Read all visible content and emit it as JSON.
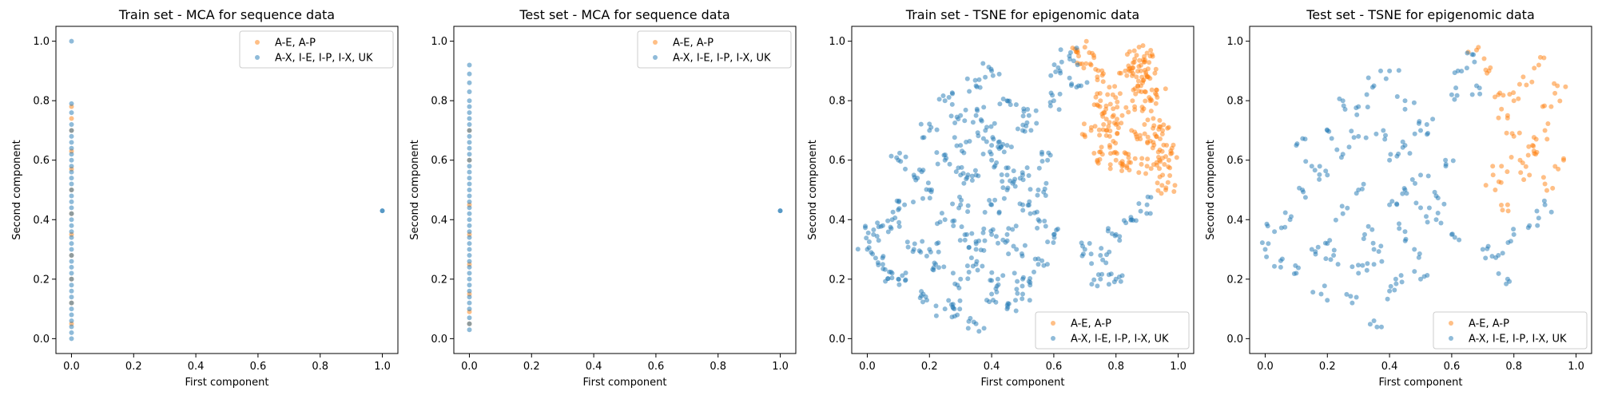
{
  "colors": {
    "orange": "#ff7f0e",
    "blue": "#1f77b4",
    "axes": "#000000",
    "legend_border": "#cccccc"
  },
  "chart_data": [
    {
      "type": "scatter",
      "title": "Train set - MCA for sequence data",
      "xlabel": "First component",
      "ylabel": "Second component",
      "xlim": [
        -0.05,
        1.05
      ],
      "ylim": [
        -0.05,
        1.05
      ],
      "xticks": [
        "0.0",
        "0.2",
        "0.4",
        "0.6",
        "0.8",
        "1.0"
      ],
      "yticks": [
        "0.0",
        "0.2",
        "0.4",
        "0.6",
        "0.8",
        "1.0"
      ],
      "grid": false,
      "legend_position": "upper right",
      "series": [
        {
          "name": "A-E, A-P",
          "color": "#ff7f0e",
          "alpha": 0.5,
          "x": [
            0,
            0,
            0,
            0,
            0,
            0,
            0,
            0,
            0,
            0,
            0,
            0
          ],
          "y": [
            0.05,
            0.12,
            0.2,
            0.28,
            0.35,
            0.42,
            0.5,
            0.57,
            0.63,
            0.7,
            0.74,
            0.78
          ]
        },
        {
          "name": "A-X, I-E, I-P, I-X, UK",
          "color": "#1f77b4",
          "alpha": 0.5,
          "x": [
            0,
            0,
            0,
            0,
            0,
            0,
            0,
            0,
            0,
            0,
            0,
            0,
            0,
            0,
            0,
            0,
            0,
            0,
            0,
            0,
            0,
            0,
            0,
            0,
            0,
            0,
            0,
            0,
            0,
            0,
            0,
            0,
            0,
            0,
            0,
            0,
            0,
            0,
            0,
            1,
            1
          ],
          "y": [
            0.0,
            0.02,
            0.04,
            0.06,
            0.08,
            0.1,
            0.12,
            0.14,
            0.16,
            0.18,
            0.2,
            0.22,
            0.24,
            0.26,
            0.28,
            0.3,
            0.32,
            0.34,
            0.36,
            0.38,
            0.4,
            0.42,
            0.44,
            0.46,
            0.48,
            0.5,
            0.52,
            0.54,
            0.56,
            0.58,
            0.6,
            0.62,
            0.64,
            0.66,
            0.68,
            0.7,
            0.72,
            0.76,
            0.79,
            0.43,
            0.43
          ]
        },
        {
          "name": "",
          "color": "#1f77b4",
          "alpha": 0.5,
          "x": [
            0
          ],
          "y": [
            1.0
          ]
        }
      ]
    },
    {
      "type": "scatter",
      "title": "Test set - MCA for sequence data",
      "xlabel": "First component",
      "ylabel": "Second component",
      "xlim": [
        -0.05,
        1.05
      ],
      "ylim": [
        -0.05,
        1.05
      ],
      "xticks": [
        "0.0",
        "0.2",
        "0.4",
        "0.6",
        "0.8",
        "1.0"
      ],
      "yticks": [
        "0.0",
        "0.2",
        "0.4",
        "0.6",
        "0.8",
        "1.0"
      ],
      "grid": false,
      "legend_position": "upper right",
      "series": [
        {
          "name": "A-E, A-P",
          "color": "#ff7f0e",
          "alpha": 0.5,
          "x": [
            0,
            0,
            0,
            0,
            0,
            0,
            0,
            0
          ],
          "y": [
            0.05,
            0.09,
            0.15,
            0.25,
            0.35,
            0.45,
            0.6,
            0.7
          ]
        },
        {
          "name": "A-X, I-E, I-P, I-X, UK",
          "color": "#1f77b4",
          "alpha": 0.5,
          "x": [
            0,
            0,
            0,
            0,
            0,
            0,
            0,
            0,
            0,
            0,
            0,
            0,
            0,
            0,
            0,
            0,
            0,
            0,
            0,
            0,
            0,
            0,
            0,
            0,
            0,
            0,
            0,
            0,
            0,
            0,
            0,
            0,
            0,
            0,
            0,
            0,
            0,
            0,
            0,
            0,
            0,
            0,
            0,
            1,
            1
          ],
          "y": [
            0.03,
            0.05,
            0.07,
            0.1,
            0.12,
            0.14,
            0.16,
            0.18,
            0.2,
            0.22,
            0.24,
            0.26,
            0.28,
            0.3,
            0.32,
            0.34,
            0.36,
            0.38,
            0.4,
            0.42,
            0.44,
            0.46,
            0.48,
            0.5,
            0.52,
            0.54,
            0.56,
            0.58,
            0.6,
            0.62,
            0.64,
            0.66,
            0.68,
            0.7,
            0.72,
            0.74,
            0.76,
            0.78,
            0.8,
            0.83,
            0.86,
            0.89,
            0.92,
            0.43,
            0.43
          ]
        }
      ]
    },
    {
      "type": "scatter",
      "title": "Train set - TSNE for epigenomic data",
      "xlabel": "First component",
      "ylabel": "Second component",
      "xlim": [
        -0.05,
        1.05
      ],
      "ylim": [
        -0.05,
        1.05
      ],
      "xticks": [
        "0.0",
        "0.2",
        "0.4",
        "0.6",
        "0.8",
        "1.0"
      ],
      "yticks": [
        "0.0",
        "0.2",
        "0.4",
        "0.6",
        "0.8",
        "1.0"
      ],
      "grid": false,
      "legend_position": "lower right",
      "series": [
        {
          "name": "A-E, A-P",
          "color": "#ff7f0e",
          "alpha": 0.5,
          "x": [
            0.68,
            0.7,
            0.72,
            0.74,
            0.75,
            0.76,
            0.78,
            0.8,
            0.82,
            0.84,
            0.85,
            0.86,
            0.87,
            0.88,
            0.89,
            0.9,
            0.91,
            0.92,
            0.93,
            0.94,
            0.95,
            0.96,
            0.97,
            0.98,
            0.72,
            0.76,
            0.79,
            0.83,
            0.86,
            0.9,
            0.93,
            0.95,
            0.74,
            0.78,
            0.82,
            0.88,
            0.92,
            0.8,
            0.85,
            0.9
          ],
          "y": [
            0.95,
            0.98,
            0.92,
            0.88,
            0.8,
            0.72,
            0.65,
            0.6,
            0.58,
            0.62,
            0.7,
            0.78,
            0.85,
            0.9,
            0.93,
            0.88,
            0.8,
            0.74,
            0.68,
            0.6,
            0.55,
            0.5,
            0.6,
            0.64,
            0.7,
            0.76,
            0.82,
            0.9,
            0.94,
            0.96,
            0.82,
            0.7,
            0.6,
            0.68,
            0.75,
            0.85,
            0.66,
            0.72,
            0.9,
            0.58
          ]
        },
        {
          "name": "A-X, I-E, I-P, I-X, UK",
          "color": "#1f77b4",
          "alpha": 0.5,
          "x": [
            0.0,
            0.02,
            0.05,
            0.08,
            0.1,
            0.12,
            0.15,
            0.18,
            0.2,
            0.22,
            0.25,
            0.28,
            0.3,
            0.32,
            0.35,
            0.38,
            0.4,
            0.42,
            0.45,
            0.48,
            0.5,
            0.52,
            0.55,
            0.58,
            0.6,
            0.62,
            0.65,
            0.68,
            0.1,
            0.15,
            0.2,
            0.25,
            0.3,
            0.35,
            0.4,
            0.45,
            0.5,
            0.55,
            0.6,
            0.2,
            0.25,
            0.3,
            0.35,
            0.4,
            0.45,
            0.5,
            0.3,
            0.35,
            0.4,
            0.45,
            0.5,
            0.55,
            0.25,
            0.3,
            0.35,
            0.4,
            0.45,
            0.35,
            0.4,
            0.45,
            0.5,
            0.7,
            0.75,
            0.8,
            0.85,
            0.9,
            0.75,
            0.8,
            0.05,
            0.08
          ],
          "y": [
            0.3,
            0.35,
            0.25,
            0.4,
            0.2,
            0.45,
            0.3,
            0.15,
            0.5,
            0.25,
            0.6,
            0.1,
            0.55,
            0.35,
            0.05,
            0.7,
            0.45,
            0.2,
            0.65,
            0.3,
            0.55,
            0.75,
            0.4,
            0.6,
            0.8,
            0.9,
            0.95,
            0.85,
            0.6,
            0.55,
            0.7,
            0.8,
            0.75,
            0.85,
            0.9,
            0.8,
            0.7,
            0.5,
            0.35,
            0.3,
            0.4,
            0.2,
            0.3,
            0.6,
            0.5,
            0.45,
            0.65,
            0.25,
            0.15,
            0.35,
            0.2,
            0.25,
            0.1,
            0.45,
            0.55,
            0.35,
            0.1,
            0.75,
            0.65,
            0.55,
            0.15,
            0.3,
            0.28,
            0.35,
            0.4,
            0.45,
            0.2,
            0.2,
            0.38,
            0.22
          ]
        }
      ]
    },
    {
      "type": "scatter",
      "title": "Test set - TSNE for epigenomic data",
      "xlabel": "First component",
      "ylabel": "Second component",
      "xlim": [
        -0.05,
        1.05
      ],
      "ylim": [
        -0.05,
        1.05
      ],
      "xticks": [
        "0.0",
        "0.2",
        "0.4",
        "0.6",
        "0.8",
        "1.0"
      ],
      "yticks": [
        "0.0",
        "0.2",
        "0.4",
        "0.6",
        "0.8",
        "1.0"
      ],
      "grid": false,
      "legend_position": "lower right",
      "series": [
        {
          "name": "A-E, A-P",
          "color": "#ff7f0e",
          "alpha": 0.5,
          "x": [
            0.68,
            0.72,
            0.75,
            0.78,
            0.8,
            0.82,
            0.85,
            0.87,
            0.9,
            0.92,
            0.94,
            0.96,
            0.74,
            0.78,
            0.83,
            0.88,
            0.9,
            0.76,
            0.8,
            0.86
          ],
          "y": [
            0.97,
            0.9,
            0.82,
            0.75,
            0.68,
            0.6,
            0.55,
            0.62,
            0.7,
            0.78,
            0.85,
            0.6,
            0.5,
            0.45,
            0.88,
            0.92,
            0.52,
            0.58,
            0.8,
            0.65
          ]
        },
        {
          "name": "A-X, I-E, I-P, I-X, UK",
          "color": "#1f77b4",
          "alpha": 0.5,
          "x": [
            0.0,
            0.03,
            0.05,
            0.08,
            0.1,
            0.12,
            0.15,
            0.18,
            0.2,
            0.22,
            0.25,
            0.28,
            0.3,
            0.32,
            0.35,
            0.38,
            0.4,
            0.42,
            0.45,
            0.48,
            0.5,
            0.52,
            0.55,
            0.58,
            0.6,
            0.62,
            0.65,
            0.68,
            0.1,
            0.15,
            0.2,
            0.25,
            0.3,
            0.35,
            0.4,
            0.45,
            0.5,
            0.55,
            0.6,
            0.2,
            0.25,
            0.3,
            0.35,
            0.4,
            0.45,
            0.5,
            0.3,
            0.35,
            0.4,
            0.45,
            0.5,
            0.7,
            0.75,
            0.8,
            0.85,
            0.9,
            0.78
          ],
          "y": [
            0.3,
            0.36,
            0.24,
            0.4,
            0.22,
            0.5,
            0.3,
            0.15,
            0.55,
            0.28,
            0.62,
            0.12,
            0.5,
            0.35,
            0.06,
            0.7,
            0.45,
            0.2,
            0.65,
            0.3,
            0.55,
            0.72,
            0.4,
            0.6,
            0.82,
            0.9,
            0.96,
            0.85,
            0.65,
            0.58,
            0.7,
            0.8,
            0.78,
            0.85,
            0.9,
            0.8,
            0.7,
            0.48,
            0.35,
            0.32,
            0.42,
            0.22,
            0.3,
            0.6,
            0.5,
            0.44,
            0.68,
            0.25,
            0.16,
            0.36,
            0.2,
            0.3,
            0.28,
            0.35,
            0.38,
            0.45,
            0.2
          ]
        }
      ]
    }
  ]
}
